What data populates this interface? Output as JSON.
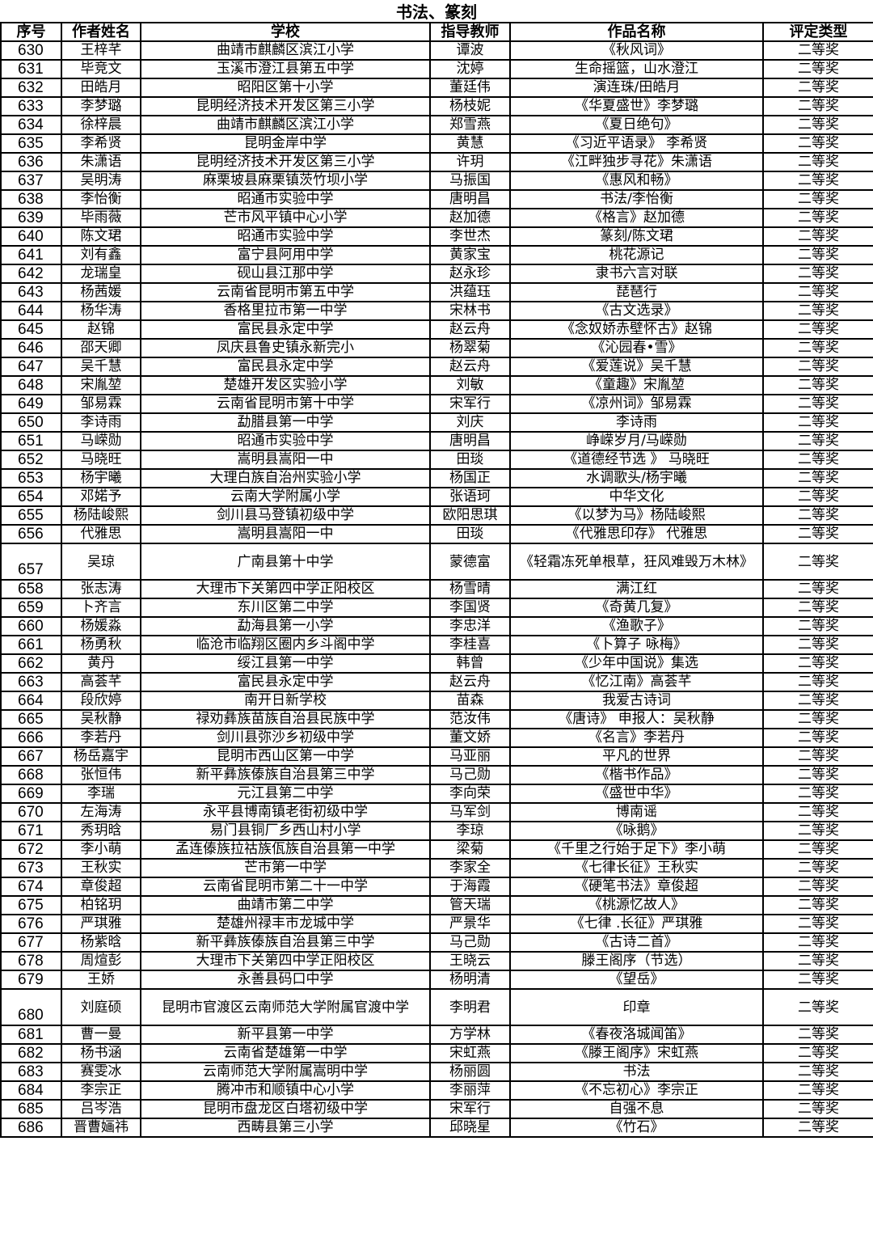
{
  "title": "书法、篆刻",
  "headers": [
    "序号",
    "作者姓名",
    "学校",
    "指导教师",
    "作品名称",
    "评定类型"
  ],
  "rows": [
    [
      "630",
      "王梓芊",
      "曲靖市麒麟区滨江小学",
      "谭波",
      "《秋风词》",
      "二等奖"
    ],
    [
      "631",
      "毕竞文",
      "玉溪市澄江县第五中学",
      "沈婷",
      "生命摇篮，山水澄江",
      "二等奖"
    ],
    [
      "632",
      "田皓月",
      "昭阳区第十小学",
      "董廷伟",
      "演连珠/田皓月",
      "二等奖"
    ],
    [
      "633",
      "李梦璐",
      "昆明经济技术开发区第三小学",
      "杨枝妮",
      "《华夏盛世》李梦璐",
      "二等奖"
    ],
    [
      "634",
      "徐梓晨",
      "曲靖市麒麟区滨江小学",
      "郑雪燕",
      "《夏日绝句》",
      "二等奖"
    ],
    [
      "635",
      "李希贤",
      "昆明金岸中学",
      "黄慧",
      "《习近平语录》 李希贤",
      "二等奖"
    ],
    [
      "636",
      "朱潇语",
      "昆明经济技术开发区第三小学",
      "许玥",
      "《江畔独步寻花》朱潇语",
      "二等奖"
    ],
    [
      "637",
      "吴明涛",
      "麻栗坡县麻栗镇茨竹坝小学",
      "马振国",
      "《惠风和畅》",
      "二等奖"
    ],
    [
      "638",
      "李怡衡",
      "昭通市实验中学",
      "唐明昌",
      "书法/李怡衡",
      "二等奖"
    ],
    [
      "639",
      "毕雨薇",
      "芒市风平镇中心小学",
      "赵加德",
      "《格言》赵加德",
      "二等奖"
    ],
    [
      "640",
      "陈文珺",
      "昭通市实验中学",
      "李世杰",
      "篆刻/陈文珺",
      "二等奖"
    ],
    [
      "641",
      "刘有鑫",
      "富宁县阿用中学",
      "黄家宝",
      "桃花源记",
      "二等奖"
    ],
    [
      "642",
      "龙瑞皇",
      "砚山县江那中学",
      "赵永珍",
      "隶书六言对联",
      "二等奖"
    ],
    [
      "643",
      "杨茜媛",
      "云南省昆明市第五中学",
      "洪蕴珏",
      "琵琶行",
      "二等奖"
    ],
    [
      "644",
      "杨华涛",
      "香格里拉市第一中学",
      "宋林书",
      "《古文选录》",
      "二等奖"
    ],
    [
      "645",
      "赵锦",
      "富民县永定中学",
      "赵云舟",
      "《念奴娇赤壁怀古》赵锦",
      "二等奖"
    ],
    [
      "646",
      "邵天卿",
      "凤庆县鲁史镇永新完小",
      "杨翠菊",
      "《沁园春•雪》",
      "二等奖"
    ],
    [
      "647",
      "吴千慧",
      "富民县永定中学",
      "赵云舟",
      "《爱莲说》吴千慧",
      "二等奖"
    ],
    [
      "648",
      "宋胤堃",
      "楚雄开发区实验小学",
      "刘敏",
      "《童趣》宋胤堃",
      "二等奖"
    ],
    [
      "649",
      "邹易霖",
      "云南省昆明市第十中学",
      "宋军行",
      "《凉州词》邹易霖",
      "二等奖"
    ],
    [
      "650",
      "李诗雨",
      "勐腊县第一中学",
      "刘庆",
      "李诗雨",
      "二等奖"
    ],
    [
      "651",
      "马嵘勋",
      "昭通市实验中学",
      "唐明昌",
      "峥嵘岁月/马嵘勋",
      "二等奖"
    ],
    [
      "652",
      "马晓旺",
      "嵩明县嵩阳一中",
      "田琰",
      "《道德经节选 》 马晓旺",
      "二等奖"
    ],
    [
      "653",
      "杨宇曦",
      "大理白族自治州实验小学",
      "杨国正",
      "水调歌头/杨宇曦",
      "二等奖"
    ],
    [
      "654",
      "邓婼予",
      "云南大学附属小学",
      "张语珂",
      "中华文化",
      "二等奖"
    ],
    [
      "655",
      "杨陆峻熙",
      "剑川县马登镇初级中学",
      "欧阳思琪",
      "《以梦为马》杨陆峻熙",
      "二等奖"
    ],
    [
      "656",
      "代雅思",
      "嵩明县嵩阳一中",
      "田琰",
      "《代雅思印存》 代雅思",
      "二等奖"
    ],
    [
      "657",
      "吴琼",
      "广南县第十中学",
      "蒙德富",
      "《轻霜冻死单根草，狂风难毁万木林》",
      "二等奖"
    ],
    [
      "658",
      "张志涛",
      "大理市下关第四中学正阳校区",
      "杨雪晴",
      "满江红",
      "二等奖"
    ],
    [
      "659",
      "卜齐言",
      "东川区第二中学",
      "李国贤",
      "《奇黄几复》",
      "二等奖"
    ],
    [
      "660",
      "杨媛淼",
      "勐海县第一小学",
      "李忠洋",
      "《渔歌子》",
      "二等奖"
    ],
    [
      "661",
      "杨勇秋",
      "临沧市临翔区圈内乡斗阁中学",
      "李桂喜",
      "《卜算子 咏梅》",
      "二等奖"
    ],
    [
      "662",
      "黄丹",
      "绥江县第一中学",
      "韩曾",
      "《少年中国说》集选",
      "二等奖"
    ],
    [
      "663",
      "高荟芊",
      "富民县永定中学",
      "赵云舟",
      "《忆江南》高荟芊",
      "二等奖"
    ],
    [
      "664",
      "段欣婷",
      "南开日新学校",
      "苗森",
      "我爱古诗词",
      "二等奖"
    ],
    [
      "665",
      "吴秋静",
      "禄劝彝族苗族自治县民族中学",
      "范汝伟",
      "《唐诗》 申报人：吴秋静",
      "二等奖"
    ],
    [
      "666",
      "李若丹",
      "剑川县弥沙乡初级中学",
      "董文娇",
      "《名言》李若丹",
      "二等奖"
    ],
    [
      "667",
      "杨岳嘉宇",
      "昆明市西山区第一中学",
      "马亚丽",
      "平凡的世界",
      "二等奖"
    ],
    [
      "668",
      "张恒伟",
      "新平彝族傣族自治县第三中学",
      "马己勋",
      "《楷书作品》",
      "二等奖"
    ],
    [
      "669",
      "李瑞",
      "元江县第二中学",
      "李向荣",
      "《盛世中华》",
      "二等奖"
    ],
    [
      "670",
      "左海涛",
      "永平县博南镇老街初级中学",
      "马军剑",
      "博南谣",
      "二等奖"
    ],
    [
      "671",
      "秀玥晗",
      "易门县铜厂乡西山村小学",
      "李琼",
      "《咏鹅》",
      "二等奖"
    ],
    [
      "672",
      "李小萌",
      "孟连傣族拉祜族佤族自治县第一中学",
      "梁菊",
      "《千里之行始于足下》李小萌",
      "二等奖"
    ],
    [
      "673",
      "王秋实",
      "芒市第一中学",
      "李家全",
      "《七律长征》王秋实",
      "二等奖"
    ],
    [
      "674",
      "章俊超",
      "云南省昆明市第二十一中学",
      "于海霞",
      "《硬笔书法》章俊超",
      "二等奖"
    ],
    [
      "675",
      "柏铭玥",
      "曲靖市第二中学",
      "管天瑞",
      "《桃源忆故人》",
      "二等奖"
    ],
    [
      "676",
      "严琪雅",
      "楚雄州禄丰市龙城中学",
      "严景华",
      "《七律 .长征》严琪雅",
      "二等奖"
    ],
    [
      "677",
      "杨紫晗",
      "新平彝族傣族自治县第三中学",
      "马己勋",
      "《古诗二首》",
      "二等奖"
    ],
    [
      "678",
      "周煊彭",
      "大理市下关第四中学正阳校区",
      "王晓云",
      "滕王阁序（节选）",
      "二等奖"
    ],
    [
      "679",
      "王娇",
      "永善县码口中学",
      "杨明清",
      "《望岳》",
      "二等奖"
    ],
    [
      "680",
      "刘庭硕",
      "昆明市官渡区云南师范大学附属官渡中学",
      "李明君",
      "印章",
      "二等奖"
    ],
    [
      "681",
      "曹一曼",
      "新平县第一中学",
      "方学林",
      "《春夜洛城闻笛》",
      "二等奖"
    ],
    [
      "682",
      "杨书涵",
      "云南省楚雄第一中学",
      "宋虹燕",
      "《滕王阁序》宋虹燕",
      "二等奖"
    ],
    [
      "683",
      "赛雯冰",
      "云南师范大学附属嵩明中学",
      "杨丽圆",
      "书法",
      "二等奖"
    ],
    [
      "684",
      "李宗正",
      "腾冲市和顺镇中心小学",
      "李丽萍",
      "《不忘初心》李宗正",
      "二等奖"
    ],
    [
      "685",
      "吕岑浩",
      "昆明市盘龙区白塔初级中学",
      "宋军行",
      "自强不息",
      "二等奖"
    ],
    [
      "686",
      "晋曹婳祎",
      "西畴县第三小学",
      "邱晓星",
      "《竹石》",
      "二等奖"
    ]
  ]
}
